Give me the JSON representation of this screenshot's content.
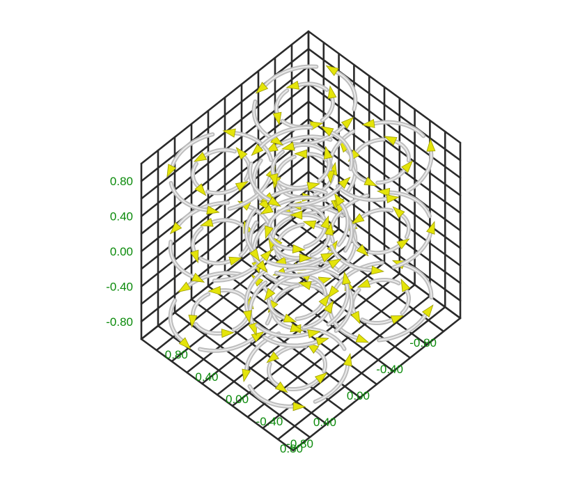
{
  "chart_data": {
    "type": "3d-vector-field",
    "axes": {
      "vertical": {
        "ticks": [
          "0.80",
          "0.40",
          "0.00",
          "-0.40",
          "-0.80"
        ],
        "range": [
          -1,
          1
        ]
      },
      "front_left": {
        "ticks": [
          "-0.80",
          "-0.40",
          "0.00",
          "0.40",
          "0.80"
        ],
        "range": [
          -1,
          1
        ]
      },
      "front_right": {
        "ticks": [
          "-0.80",
          "-0.40",
          "0.00",
          "0.40",
          "0.80"
        ],
        "range": [
          -1,
          1
        ]
      }
    },
    "grid": true,
    "grid_divisions": 10,
    "colors": {
      "grid": "#2a2a2a",
      "tick_labels": "#0a8a0a",
      "tube": "#bdbdbd",
      "arrow_head": "#e4e40a"
    },
    "vortex_layers": [
      {
        "level": 0.85,
        "centers": [
          [
            -0.5,
            -0.5
          ],
          [
            0.5,
            -0.5
          ],
          [
            -0.5,
            0.5
          ],
          [
            0.5,
            0.5
          ],
          [
            0,
            0
          ]
        ],
        "radii": [
          0.45,
          0.25
        ]
      },
      {
        "level": 0.05,
        "centers": [
          [
            -0.5,
            -0.5
          ],
          [
            0.5,
            -0.5
          ],
          [
            -0.5,
            0.5
          ],
          [
            0.5,
            0.5
          ],
          [
            0,
            0
          ]
        ],
        "radii": [
          0.45,
          0.25
        ]
      },
      {
        "level": -0.75,
        "centers": [
          [
            -0.5,
            -0.5
          ],
          [
            0.5,
            -0.5
          ],
          [
            -0.5,
            0.5
          ],
          [
            0.5,
            0.5
          ],
          [
            0,
            0
          ]
        ],
        "radii": [
          0.45,
          0.25
        ]
      }
    ]
  }
}
